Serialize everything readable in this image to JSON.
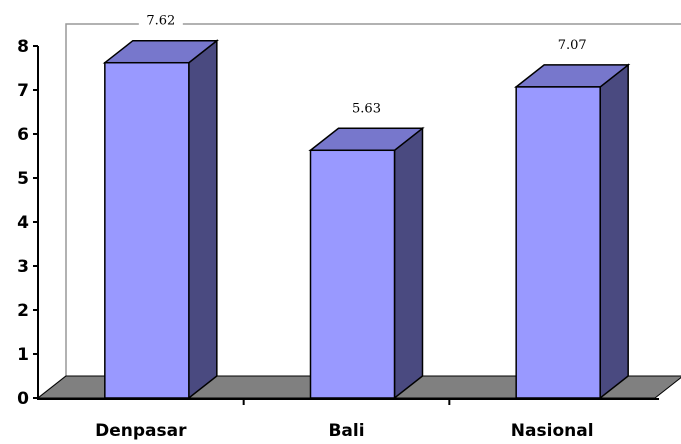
{
  "chart_data": {
    "type": "bar",
    "style": "3d-column",
    "categories": [
      "Denpasar",
      "Bali",
      "Nasional"
    ],
    "values": [
      7.62,
      5.63,
      7.07
    ],
    "data_labels": [
      "7.62",
      "5.63",
      "7.07"
    ],
    "title": "",
    "xlabel": "",
    "ylabel": "",
    "ylim": [
      0,
      8
    ],
    "yticks": [
      "0",
      "1",
      "2",
      "3",
      "4",
      "5",
      "6",
      "7",
      "8"
    ],
    "grid": false,
    "legend": "none",
    "colors": {
      "bar_front": "#9999FF",
      "bar_side": "#4A4A80",
      "bar_top": "#7777CC",
      "floor": "#808080",
      "axis": "#000000",
      "wall_edge": "#999999"
    }
  }
}
